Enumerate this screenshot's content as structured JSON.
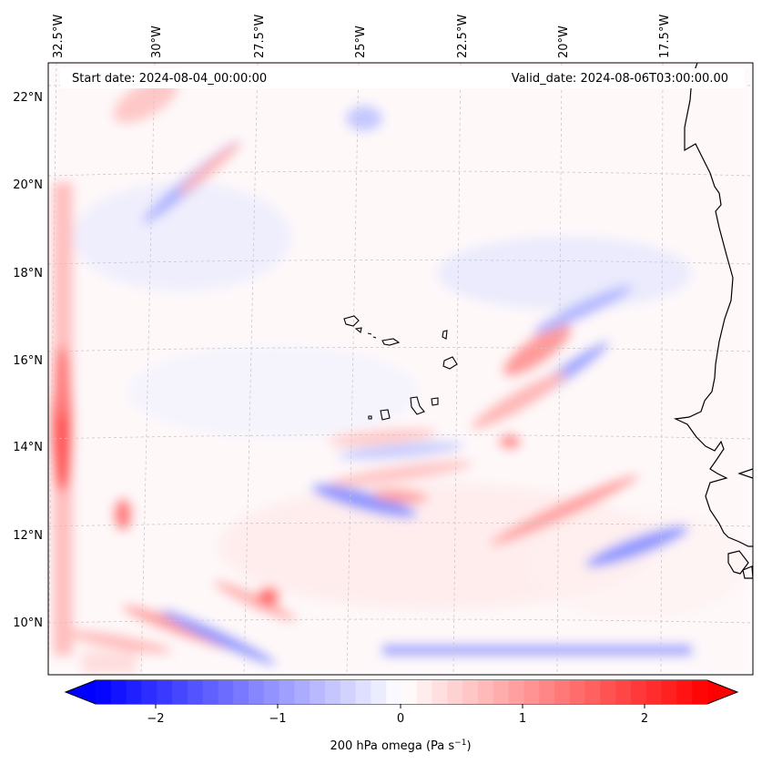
{
  "map": {
    "header_left": "Start date: 2024-08-04_00:00:00",
    "header_right": "Valid_date: 2024-08-06T03:00:00.00",
    "lon_labels": [
      "32.5°W",
      "30°W",
      "27.5°W",
      "25°W",
      "22.5°W",
      "20°W",
      "17.5°W"
    ],
    "lat_labels": [
      "22°N",
      "20°N",
      "18°N",
      "16°N",
      "14°N",
      "12°N",
      "10°N"
    ],
    "field_variable": "200 hPa omega",
    "colors": {
      "negative": "#0000ff",
      "neutral": "#ffffff",
      "positive": "#ff0000",
      "coastline": "#000000",
      "grid": "#c8c8c8"
    }
  },
  "colorbar": {
    "label_main": "200 hPa omega (Pa s",
    "label_exp": "−1",
    "label_close": ")",
    "ticks": [
      "−2",
      "−1",
      "0",
      "1",
      "2"
    ],
    "range": [
      -2.75,
      2.75
    ],
    "extend": "both",
    "cmap": "bwr"
  }
}
